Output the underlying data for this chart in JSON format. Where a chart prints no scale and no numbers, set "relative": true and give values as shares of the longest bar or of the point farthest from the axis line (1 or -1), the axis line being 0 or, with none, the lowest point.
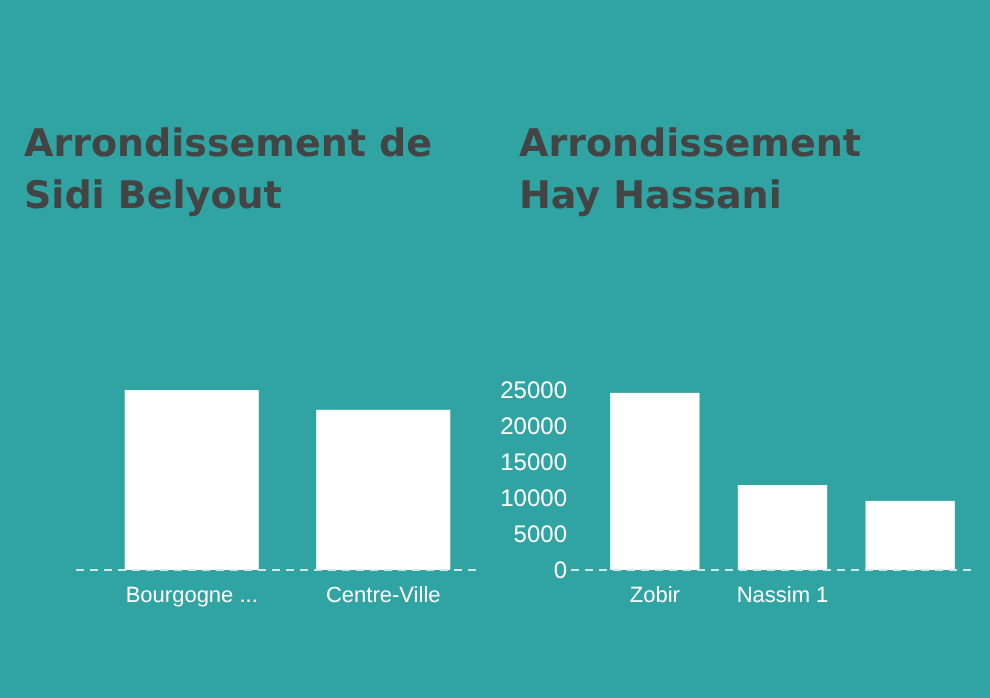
{
  "chart_data": [
    {
      "type": "bar",
      "title": "Arrondissement de Sidi Belyout",
      "categories": [
        "Bourgogne ...",
        "Centre-Ville"
      ],
      "values": [
        1,
        0.89
      ],
      "color": "#ffffff",
      "relative": true
    },
    {
      "type": "bar",
      "title": "Arrondissement Hay Hassani",
      "categories": [
        "Zobir",
        "Nassim 1",
        null
      ],
      "values": [
        24600,
        11800,
        9600
      ],
      "color": "#ffffff",
      "ylim": [
        0,
        25000
      ],
      "yticks": [
        0,
        5000,
        10000,
        15000,
        20000,
        25000
      ]
    }
  ]
}
